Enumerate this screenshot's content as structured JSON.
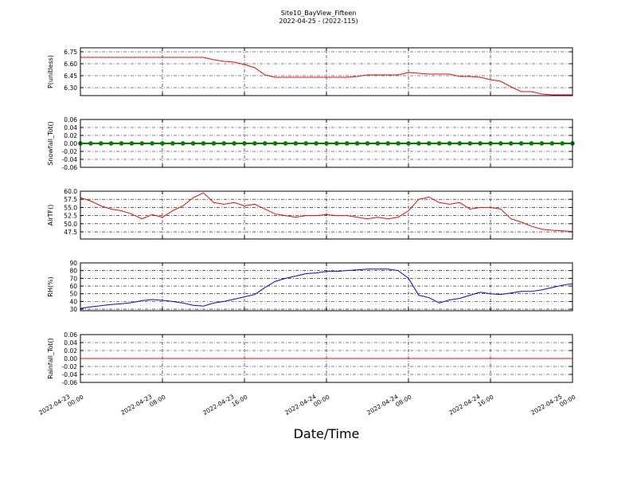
{
  "chart_data": [
    {
      "type": "line",
      "title": "Site10_BayView_Fifteen",
      "subtitle": "2022-04-25 - (2022-115)",
      "ylabel": "P(unitless)",
      "x": [
        "2022-04-23 00:00",
        "2022-04-23 01:00",
        "2022-04-23 02:00",
        "2022-04-23 03:00",
        "2022-04-23 04:00",
        "2022-04-23 05:00",
        "2022-04-23 06:00",
        "2022-04-23 07:00",
        "2022-04-23 08:00",
        "2022-04-23 09:00",
        "2022-04-23 10:00",
        "2022-04-23 11:00",
        "2022-04-23 12:00",
        "2022-04-23 13:00",
        "2022-04-23 14:00",
        "2022-04-23 15:00",
        "2022-04-23 16:00",
        "2022-04-23 17:00",
        "2022-04-23 18:00",
        "2022-04-23 19:00",
        "2022-04-23 20:00",
        "2022-04-23 21:00",
        "2022-04-23 22:00",
        "2022-04-23 23:00",
        "2022-04-24 00:00",
        "2022-04-24 01:00",
        "2022-04-24 02:00",
        "2022-04-24 03:00",
        "2022-04-24 04:00",
        "2022-04-24 05:00",
        "2022-04-24 06:00",
        "2022-04-24 07:00",
        "2022-04-24 08:00",
        "2022-04-24 09:00",
        "2022-04-24 10:00",
        "2022-04-24 11:00",
        "2022-04-24 12:00",
        "2022-04-24 13:00",
        "2022-04-24 14:00",
        "2022-04-24 15:00",
        "2022-04-24 16:00",
        "2022-04-24 17:00",
        "2022-04-24 18:00",
        "2022-04-24 19:00",
        "2022-04-24 20:00",
        "2022-04-24 21:00",
        "2022-04-24 22:00",
        "2022-04-24 23:00",
        "2022-04-25 00:00"
      ],
      "xlim": [
        "2022-04-23 00:00",
        "2022-04-25 00:00"
      ],
      "xticks": [
        "2022-04-23 00:00",
        "2022-04-23 08:00",
        "2022-04-23 16:00",
        "2022-04-24 00:00",
        "2022-04-24 08:00",
        "2022-04-24 16:00",
        "2022-04-25 00:00"
      ],
      "show_xticklabels": false,
      "grid": true,
      "ylim": [
        6.2,
        6.8
      ],
      "yticks": [
        {
          "value": 6.3,
          "label": "6.30"
        },
        6.45,
        {
          "value": 6.6,
          "label": "6.60"
        },
        6.75
      ],
      "series": [
        {
          "color": "#ff0000",
          "values": [
            6.68,
            6.68,
            6.68,
            6.68,
            6.68,
            6.68,
            6.68,
            6.68,
            6.68,
            6.68,
            6.68,
            6.68,
            6.68,
            6.65,
            6.63,
            6.62,
            6.59,
            6.55,
            6.46,
            6.43,
            6.43,
            6.43,
            6.43,
            6.43,
            6.43,
            6.43,
            6.43,
            6.44,
            6.46,
            6.46,
            6.46,
            6.46,
            6.49,
            6.48,
            6.47,
            6.47,
            6.47,
            6.44,
            6.44,
            6.43,
            6.4,
            6.38,
            6.31,
            6.25,
            6.25,
            6.22,
            6.21,
            6.21,
            6.21
          ]
        }
      ]
    },
    {
      "type": "line",
      "ylabel": "Snowfall_Tot()",
      "x": [
        "2022-04-23 00:00",
        "2022-04-23 01:00",
        "2022-04-23 02:00",
        "2022-04-23 03:00",
        "2022-04-23 04:00",
        "2022-04-23 05:00",
        "2022-04-23 06:00",
        "2022-04-23 07:00",
        "2022-04-23 08:00",
        "2022-04-23 09:00",
        "2022-04-23 10:00",
        "2022-04-23 11:00",
        "2022-04-23 12:00",
        "2022-04-23 13:00",
        "2022-04-23 14:00",
        "2022-04-23 15:00",
        "2022-04-23 16:00",
        "2022-04-23 17:00",
        "2022-04-23 18:00",
        "2022-04-23 19:00",
        "2022-04-23 20:00",
        "2022-04-23 21:00",
        "2022-04-23 22:00",
        "2022-04-23 23:00",
        "2022-04-24 00:00",
        "2022-04-24 01:00",
        "2022-04-24 02:00",
        "2022-04-24 03:00",
        "2022-04-24 04:00",
        "2022-04-24 05:00",
        "2022-04-24 06:00",
        "2022-04-24 07:00",
        "2022-04-24 08:00",
        "2022-04-24 09:00",
        "2022-04-24 10:00",
        "2022-04-24 11:00",
        "2022-04-24 12:00",
        "2022-04-24 13:00",
        "2022-04-24 14:00",
        "2022-04-24 15:00",
        "2022-04-24 16:00",
        "2022-04-24 17:00",
        "2022-04-24 18:00",
        "2022-04-24 19:00",
        "2022-04-24 20:00",
        "2022-04-24 21:00",
        "2022-04-24 22:00",
        "2022-04-24 23:00",
        "2022-04-25 00:00"
      ],
      "xlim": [
        "2022-04-23 00:00",
        "2022-04-25 00:00"
      ],
      "xticks": [
        "2022-04-23 00:00",
        "2022-04-23 08:00",
        "2022-04-23 16:00",
        "2022-04-24 00:00",
        "2022-04-24 08:00",
        "2022-04-24 16:00",
        "2022-04-25 00:00"
      ],
      "show_xticklabels": false,
      "grid": true,
      "marker": true,
      "ylim": [
        -0.06,
        0.06
      ],
      "yticks": [
        -0.06,
        -0.04,
        -0.02,
        {
          "value": 0,
          "label": "0.00"
        },
        0.02,
        0.04,
        0.06
      ],
      "series": [
        {
          "color": "#008000",
          "values": [
            0,
            0,
            0,
            0,
            0,
            0,
            0,
            0,
            0,
            0,
            0,
            0,
            0,
            0,
            0,
            0,
            0,
            0,
            0,
            0,
            0,
            0,
            0,
            0,
            0,
            0,
            0,
            0,
            0,
            0,
            0,
            0,
            0,
            0,
            0,
            0,
            0,
            0,
            0,
            0,
            0,
            0,
            0,
            0,
            0,
            0,
            0,
            0,
            0
          ]
        }
      ]
    },
    {
      "type": "line",
      "ylabel": "AirTF()",
      "x": [
        "2022-04-23 00:00",
        "2022-04-23 01:00",
        "2022-04-23 02:00",
        "2022-04-23 03:00",
        "2022-04-23 04:00",
        "2022-04-23 05:00",
        "2022-04-23 06:00",
        "2022-04-23 07:00",
        "2022-04-23 08:00",
        "2022-04-23 09:00",
        "2022-04-23 10:00",
        "2022-04-23 11:00",
        "2022-04-23 12:00",
        "2022-04-23 13:00",
        "2022-04-23 14:00",
        "2022-04-23 15:00",
        "2022-04-23 16:00",
        "2022-04-23 17:00",
        "2022-04-23 18:00",
        "2022-04-23 19:00",
        "2022-04-23 20:00",
        "2022-04-23 21:00",
        "2022-04-23 22:00",
        "2022-04-23 23:00",
        "2022-04-24 00:00",
        "2022-04-24 01:00",
        "2022-04-24 02:00",
        "2022-04-24 03:00",
        "2022-04-24 04:00",
        "2022-04-24 05:00",
        "2022-04-24 06:00",
        "2022-04-24 07:00",
        "2022-04-24 08:00",
        "2022-04-24 09:00",
        "2022-04-24 10:00",
        "2022-04-24 11:00",
        "2022-04-24 12:00",
        "2022-04-24 13:00",
        "2022-04-24 14:00",
        "2022-04-24 15:00",
        "2022-04-24 16:00",
        "2022-04-24 17:00",
        "2022-04-24 18:00",
        "2022-04-24 19:00",
        "2022-04-24 20:00",
        "2022-04-24 21:00",
        "2022-04-24 22:00",
        "2022-04-24 23:00",
        "2022-04-25 00:00"
      ],
      "xlim": [
        "2022-04-23 00:00",
        "2022-04-25 00:00"
      ],
      "xticks": [
        "2022-04-23 00:00",
        "2022-04-23 08:00",
        "2022-04-23 16:00",
        "2022-04-24 00:00",
        "2022-04-24 08:00",
        "2022-04-24 16:00",
        "2022-04-25 00:00"
      ],
      "show_xticklabels": false,
      "grid": true,
      "ylim": [
        45.3,
        60
      ],
      "yticks": [
        47.5,
        {
          "value": 50,
          "label": "50.0"
        },
        52.5,
        {
          "value": 55,
          "label": "55.0"
        },
        57.5,
        {
          "value": 60,
          "label": "60.0"
        }
      ],
      "series": [
        {
          "color": "#ff0000",
          "values": [
            58,
            57,
            55.5,
            54.5,
            54,
            53,
            51.5,
            52.8,
            52,
            54,
            55.5,
            58,
            59.5,
            56.5,
            56,
            56.5,
            55.5,
            56,
            54.5,
            53,
            52.5,
            52,
            52.5,
            52.5,
            52.8,
            52.5,
            52.5,
            52,
            51.5,
            52,
            51.5,
            52,
            54,
            57.5,
            58.2,
            56.5,
            56,
            56.5,
            54.5,
            55,
            55,
            54.5,
            51.5,
            50.5,
            49.2,
            48.3,
            48,
            47.8,
            47.6
          ]
        }
      ]
    },
    {
      "type": "line",
      "ylabel": "RH(%)",
      "x": [
        "2022-04-23 00:00",
        "2022-04-23 01:00",
        "2022-04-23 02:00",
        "2022-04-23 03:00",
        "2022-04-23 04:00",
        "2022-04-23 05:00",
        "2022-04-23 06:00",
        "2022-04-23 07:00",
        "2022-04-23 08:00",
        "2022-04-23 09:00",
        "2022-04-23 10:00",
        "2022-04-23 11:00",
        "2022-04-23 12:00",
        "2022-04-23 13:00",
        "2022-04-23 14:00",
        "2022-04-23 15:00",
        "2022-04-23 16:00",
        "2022-04-23 17:00",
        "2022-04-23 18:00",
        "2022-04-23 19:00",
        "2022-04-23 20:00",
        "2022-04-23 21:00",
        "2022-04-23 22:00",
        "2022-04-23 23:00",
        "2022-04-24 00:00",
        "2022-04-24 01:00",
        "2022-04-24 02:00",
        "2022-04-24 03:00",
        "2022-04-24 04:00",
        "2022-04-24 05:00",
        "2022-04-24 06:00",
        "2022-04-24 07:00",
        "2022-04-24 08:00",
        "2022-04-24 09:00",
        "2022-04-24 10:00",
        "2022-04-24 11:00",
        "2022-04-24 12:00",
        "2022-04-24 13:00",
        "2022-04-24 14:00",
        "2022-04-24 15:00",
        "2022-04-24 16:00",
        "2022-04-24 17:00",
        "2022-04-24 18:00",
        "2022-04-24 19:00",
        "2022-04-24 20:00",
        "2022-04-24 21:00",
        "2022-04-24 22:00",
        "2022-04-24 23:00",
        "2022-04-25 00:00"
      ],
      "xlim": [
        "2022-04-23 00:00",
        "2022-04-25 00:00"
      ],
      "xticks": [
        "2022-04-23 00:00",
        "2022-04-23 08:00",
        "2022-04-23 16:00",
        "2022-04-24 00:00",
        "2022-04-24 08:00",
        "2022-04-24 16:00",
        "2022-04-25 00:00"
      ],
      "show_xticklabels": false,
      "grid": true,
      "ylim": [
        28,
        90
      ],
      "yticks": [
        30,
        40,
        50,
        60,
        70,
        80,
        90
      ],
      "series": [
        {
          "color": "#0000ff",
          "values": [
            31,
            33,
            34.5,
            36,
            37,
            38.5,
            41,
            42.5,
            41.5,
            40,
            38,
            35,
            34,
            38,
            40,
            43,
            46,
            49,
            58,
            66,
            70,
            73,
            76,
            77,
            79,
            79,
            80,
            81,
            82,
            82,
            82,
            80,
            70,
            48,
            45,
            38,
            42,
            44,
            48,
            52,
            50,
            49,
            51,
            53,
            53,
            55,
            58,
            61,
            63
          ]
        }
      ]
    },
    {
      "type": "line",
      "ylabel": "Rainfall_Tot()",
      "xlabel": "Date/Time",
      "x": [
        "2022-04-23 00:00",
        "2022-04-23 01:00",
        "2022-04-23 02:00",
        "2022-04-23 03:00",
        "2022-04-23 04:00",
        "2022-04-23 05:00",
        "2022-04-23 06:00",
        "2022-04-23 07:00",
        "2022-04-23 08:00",
        "2022-04-23 09:00",
        "2022-04-23 10:00",
        "2022-04-23 11:00",
        "2022-04-23 12:00",
        "2022-04-23 13:00",
        "2022-04-23 14:00",
        "2022-04-23 15:00",
        "2022-04-23 16:00",
        "2022-04-23 17:00",
        "2022-04-23 18:00",
        "2022-04-23 19:00",
        "2022-04-23 20:00",
        "2022-04-23 21:00",
        "2022-04-23 22:00",
        "2022-04-23 23:00",
        "2022-04-24 00:00",
        "2022-04-24 01:00",
        "2022-04-24 02:00",
        "2022-04-24 03:00",
        "2022-04-24 04:00",
        "2022-04-24 05:00",
        "2022-04-24 06:00",
        "2022-04-24 07:00",
        "2022-04-24 08:00",
        "2022-04-24 09:00",
        "2022-04-24 10:00",
        "2022-04-24 11:00",
        "2022-04-24 12:00",
        "2022-04-24 13:00",
        "2022-04-24 14:00",
        "2022-04-24 15:00",
        "2022-04-24 16:00",
        "2022-04-24 17:00",
        "2022-04-24 18:00",
        "2022-04-24 19:00",
        "2022-04-24 20:00",
        "2022-04-24 21:00",
        "2022-04-24 22:00",
        "2022-04-24 23:00",
        "2022-04-25 00:00"
      ],
      "xlim": [
        "2022-04-23 00:00",
        "2022-04-25 00:00"
      ],
      "xticks": [
        "2022-04-23 00:00",
        "2022-04-23 08:00",
        "2022-04-23 16:00",
        "2022-04-24 00:00",
        "2022-04-24 08:00",
        "2022-04-24 16:00",
        "2022-04-25 00:00"
      ],
      "show_xticklabels": true,
      "grid": true,
      "ylim": [
        -0.06,
        0.06
      ],
      "yticks": [
        -0.06,
        -0.04,
        -0.02,
        {
          "value": 0,
          "label": "0.00"
        },
        0.02,
        0.04,
        0.06
      ],
      "series": [
        {
          "color": "#ff0000",
          "values": [
            0,
            0,
            0,
            0,
            0,
            0,
            0,
            0,
            0,
            0,
            0,
            0,
            0,
            0,
            0,
            0,
            0,
            0,
            0,
            0,
            0,
            0,
            0,
            0,
            0,
            0,
            0,
            0,
            0,
            0,
            0,
            0,
            0,
            0,
            0,
            0,
            0,
            0,
            0,
            0,
            0,
            0,
            0,
            0,
            0,
            0,
            0,
            0,
            0
          ]
        }
      ]
    }
  ]
}
